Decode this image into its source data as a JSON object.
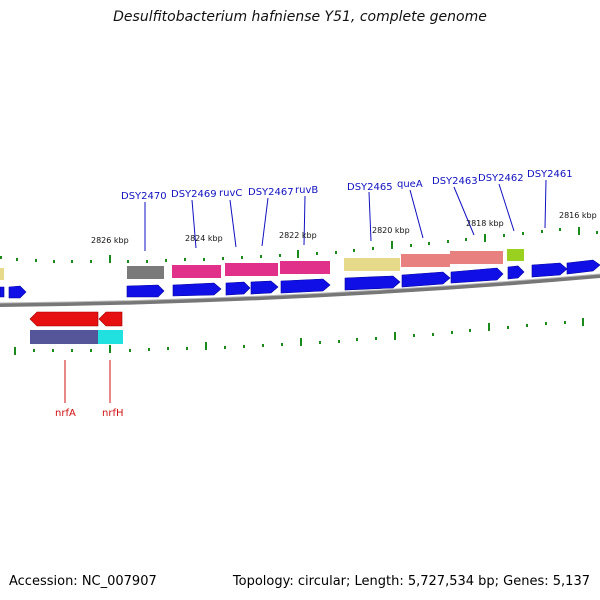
{
  "title": "Desulfitobacterium hafniense Y51, complete genome",
  "footer": {
    "accession": "Accession: NC_007907",
    "summary": "Topology: circular; Length: 5,727,534 bp; Genes: 5,137"
  },
  "scale_labels": [
    "2826 kbp",
    "2824 kbp",
    "2822 kbp",
    "2820 kbp",
    "2818 kbp",
    "2816 kbp"
  ],
  "gene_labels_top": [
    "DSY2470",
    "DSY2469",
    "ruvC",
    "DSY2467",
    "ruvB",
    "DSY2465",
    "queA",
    "DSY2463",
    "DSY2462",
    "DSY2461"
  ],
  "gene_labels_bottom": [
    "nrfA",
    "nrfH"
  ],
  "colors": {
    "backbone": "#8a8a8a",
    "forward_cds": "#1010e6",
    "reverse_cds": "#e61010",
    "tick": "#1a8a1a",
    "label_top": "#1010c0",
    "label_bottom": "#d01010",
    "cog_gray": "#7a7a7a",
    "cog_magenta": "#e0308a",
    "cog_khaki": "#e6d98a",
    "cog_salmon": "#e88080",
    "cog_lime": "#9ad020",
    "cog_navy": "#55559a",
    "cog_cyan": "#20e0e0"
  }
}
